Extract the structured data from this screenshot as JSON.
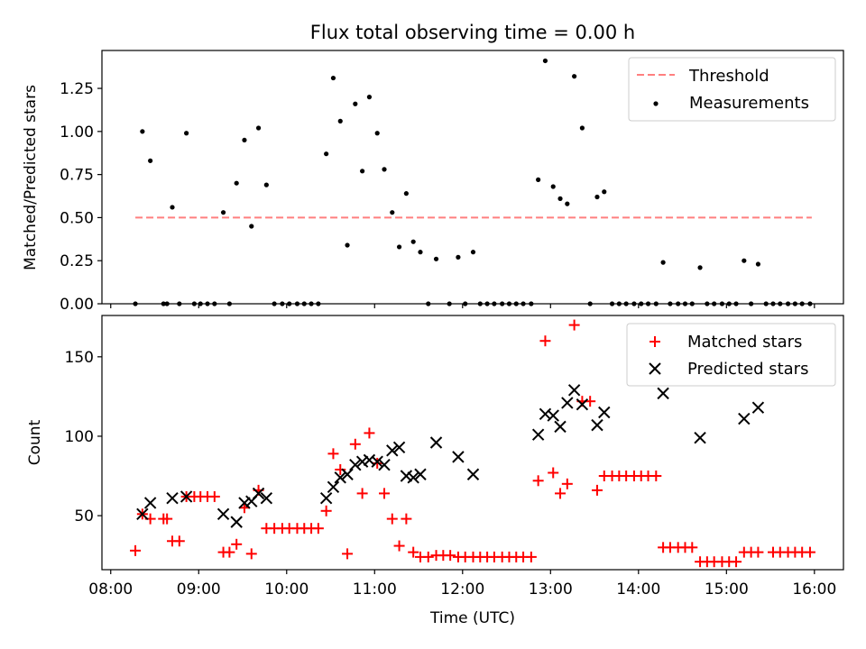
{
  "chart_data": [
    {
      "type": "scatter",
      "title": "Flux total observing time = 0.00 h",
      "xlabel": "",
      "ylabel": "Matched/Predicted stars",
      "xlim": [
        7.9,
        16.33
      ],
      "ylim": [
        0,
        1.47
      ],
      "xticks": [
        8,
        9,
        10,
        11,
        12,
        13,
        14,
        15,
        16
      ],
      "xtick_labels": [],
      "yticks": [
        0,
        0.25,
        0.5,
        0.75,
        1.0,
        1.25
      ],
      "ytick_labels": [
        "0.00",
        "0.25",
        "0.50",
        "0.75",
        "1.00",
        "1.25"
      ],
      "legend_position": "upper right",
      "series": [
        {
          "name": "Threshold",
          "style": "dashed-line",
          "color": "#ff7f7f",
          "points": [
            [
              8.28,
              0.5
            ],
            [
              15.97,
              0.5
            ]
          ]
        },
        {
          "name": "Measurements",
          "style": "dot",
          "color": "#000000",
          "points": [
            [
              8.28,
              0.0
            ],
            [
              8.36,
              1.0
            ],
            [
              8.45,
              0.83
            ],
            [
              8.6,
              0.0
            ],
            [
              8.64,
              0.0
            ],
            [
              8.7,
              0.56
            ],
            [
              8.78,
              0.0
            ],
            [
              8.86,
              0.99
            ],
            [
              8.95,
              0.0
            ],
            [
              9.02,
              0.0
            ],
            [
              9.1,
              0.0
            ],
            [
              9.18,
              0.0
            ],
            [
              9.28,
              0.53
            ],
            [
              9.35,
              0.0
            ],
            [
              9.43,
              0.7
            ],
            [
              9.52,
              0.95
            ],
            [
              9.6,
              0.45
            ],
            [
              9.68,
              1.02
            ],
            [
              9.77,
              0.69
            ],
            [
              9.86,
              0.0
            ],
            [
              9.95,
              0.0
            ],
            [
              10.03,
              0.0
            ],
            [
              10.12,
              0.0
            ],
            [
              10.2,
              0.0
            ],
            [
              10.28,
              0.0
            ],
            [
              10.36,
              0.0
            ],
            [
              10.45,
              0.87
            ],
            [
              10.53,
              1.31
            ],
            [
              10.61,
              1.06
            ],
            [
              10.69,
              0.34
            ],
            [
              10.78,
              1.16
            ],
            [
              10.86,
              0.77
            ],
            [
              10.94,
              1.2
            ],
            [
              11.03,
              0.99
            ],
            [
              11.11,
              0.78
            ],
            [
              11.2,
              0.53
            ],
            [
              11.28,
              0.33
            ],
            [
              11.36,
              0.64
            ],
            [
              11.44,
              0.36
            ],
            [
              11.52,
              0.3
            ],
            [
              11.61,
              0.0
            ],
            [
              11.7,
              0.26
            ],
            [
              11.85,
              0.0
            ],
            [
              11.95,
              0.27
            ],
            [
              12.03,
              0.0
            ],
            [
              12.12,
              0.3
            ],
            [
              12.2,
              0.0
            ],
            [
              12.28,
              0.0
            ],
            [
              12.36,
              0.0
            ],
            [
              12.45,
              0.0
            ],
            [
              12.53,
              0.0
            ],
            [
              12.61,
              0.0
            ],
            [
              12.69,
              0.0
            ],
            [
              12.78,
              0.0
            ],
            [
              12.86,
              0.72
            ],
            [
              12.94,
              1.41
            ],
            [
              13.03,
              0.68
            ],
            [
              13.11,
              0.61
            ],
            [
              13.19,
              0.58
            ],
            [
              13.27,
              1.32
            ],
            [
              13.36,
              1.02
            ],
            [
              13.45,
              0.0
            ],
            [
              13.53,
              0.62
            ],
            [
              13.61,
              0.65
            ],
            [
              13.7,
              0.0
            ],
            [
              13.78,
              0.0
            ],
            [
              13.86,
              0.0
            ],
            [
              13.95,
              0.0
            ],
            [
              14.03,
              0.0
            ],
            [
              14.11,
              0.0
            ],
            [
              14.2,
              0.0
            ],
            [
              14.28,
              0.24
            ],
            [
              14.36,
              0.0
            ],
            [
              14.45,
              0.0
            ],
            [
              14.53,
              0.0
            ],
            [
              14.61,
              0.0
            ],
            [
              14.7,
              0.21
            ],
            [
              14.78,
              0.0
            ],
            [
              14.86,
              0.0
            ],
            [
              14.95,
              0.0
            ],
            [
              15.03,
              0.0
            ],
            [
              15.11,
              0.0
            ],
            [
              15.2,
              0.25
            ],
            [
              15.28,
              0.0
            ],
            [
              15.36,
              0.23
            ],
            [
              15.45,
              0.0
            ],
            [
              15.53,
              0.0
            ],
            [
              15.61,
              0.0
            ],
            [
              15.7,
              0.0
            ],
            [
              15.78,
              0.0
            ],
            [
              15.86,
              0.0
            ],
            [
              15.95,
              0.0
            ]
          ]
        }
      ]
    },
    {
      "type": "scatter",
      "title": "",
      "xlabel": "Time (UTC)",
      "ylabel": "Count",
      "xlim": [
        7.9,
        16.33
      ],
      "ylim": [
        16,
        176
      ],
      "xticks": [
        8,
        9,
        10,
        11,
        12,
        13,
        14,
        15,
        16
      ],
      "xtick_labels": [
        "08:00",
        "09:00",
        "10:00",
        "11:00",
        "12:00",
        "13:00",
        "14:00",
        "15:00",
        "16:00"
      ],
      "yticks": [
        50,
        100,
        150
      ],
      "ytick_labels": [
        "50",
        "100",
        "150"
      ],
      "legend_position": "upper right",
      "series": [
        {
          "name": "Matched stars",
          "style": "plus",
          "color": "#ff0000",
          "points": [
            [
              8.28,
              28
            ],
            [
              8.36,
              51
            ],
            [
              8.45,
              48
            ],
            [
              8.6,
              48
            ],
            [
              8.64,
              48
            ],
            [
              8.7,
              34
            ],
            [
              8.78,
              34
            ],
            [
              8.86,
              62
            ],
            [
              8.95,
              62
            ],
            [
              9.02,
              62
            ],
            [
              9.1,
              62
            ],
            [
              9.18,
              62
            ],
            [
              9.28,
              27
            ],
            [
              9.35,
              27
            ],
            [
              9.43,
              32
            ],
            [
              9.52,
              55
            ],
            [
              9.6,
              26
            ],
            [
              9.68,
              66
            ],
            [
              9.77,
              42
            ],
            [
              9.86,
              42
            ],
            [
              9.95,
              42
            ],
            [
              10.03,
              42
            ],
            [
              10.12,
              42
            ],
            [
              10.2,
              42
            ],
            [
              10.28,
              42
            ],
            [
              10.36,
              42
            ],
            [
              10.45,
              53
            ],
            [
              10.53,
              89
            ],
            [
              10.61,
              79
            ],
            [
              10.69,
              26
            ],
            [
              10.78,
              95
            ],
            [
              10.86,
              64
            ],
            [
              10.94,
              102
            ],
            [
              11.03,
              83
            ],
            [
              11.11,
              64
            ],
            [
              11.2,
              48
            ],
            [
              11.28,
              31
            ],
            [
              11.36,
              48
            ],
            [
              11.44,
              27
            ],
            [
              11.52,
              24
            ],
            [
              11.61,
              24
            ],
            [
              11.7,
              25
            ],
            [
              11.78,
              25
            ],
            [
              11.86,
              25
            ],
            [
              11.95,
              24
            ],
            [
              12.03,
              24
            ],
            [
              12.12,
              24
            ],
            [
              12.2,
              24
            ],
            [
              12.28,
              24
            ],
            [
              12.36,
              24
            ],
            [
              12.45,
              24
            ],
            [
              12.53,
              24
            ],
            [
              12.61,
              24
            ],
            [
              12.69,
              24
            ],
            [
              12.78,
              24
            ],
            [
              12.86,
              72
            ],
            [
              12.94,
              160
            ],
            [
              13.03,
              77
            ],
            [
              13.11,
              64
            ],
            [
              13.19,
              70
            ],
            [
              13.27,
              170
            ],
            [
              13.36,
              122
            ],
            [
              13.45,
              122
            ],
            [
              13.53,
              66
            ],
            [
              13.61,
              75
            ],
            [
              13.7,
              75
            ],
            [
              13.78,
              75
            ],
            [
              13.86,
              75
            ],
            [
              13.95,
              75
            ],
            [
              14.03,
              75
            ],
            [
              14.11,
              75
            ],
            [
              14.2,
              75
            ],
            [
              14.28,
              30
            ],
            [
              14.36,
              30
            ],
            [
              14.45,
              30
            ],
            [
              14.53,
              30
            ],
            [
              14.61,
              30
            ],
            [
              14.7,
              21
            ],
            [
              14.78,
              21
            ],
            [
              14.86,
              21
            ],
            [
              14.95,
              21
            ],
            [
              15.03,
              21
            ],
            [
              15.11,
              21
            ],
            [
              15.2,
              27
            ],
            [
              15.28,
              27
            ],
            [
              15.36,
              27
            ],
            [
              15.53,
              27
            ],
            [
              15.61,
              27
            ],
            [
              15.7,
              27
            ],
            [
              15.78,
              27
            ],
            [
              15.86,
              27
            ],
            [
              15.95,
              27
            ]
          ]
        },
        {
          "name": "Predicted stars",
          "style": "x",
          "color": "#000000",
          "points": [
            [
              8.36,
              51
            ],
            [
              8.45,
              58
            ],
            [
              8.7,
              61
            ],
            [
              8.86,
              62
            ],
            [
              9.28,
              51
            ],
            [
              9.43,
              46
            ],
            [
              9.52,
              58
            ],
            [
              9.6,
              59
            ],
            [
              9.68,
              64
            ],
            [
              9.77,
              61
            ],
            [
              10.45,
              61
            ],
            [
              10.53,
              68
            ],
            [
              10.61,
              74
            ],
            [
              10.69,
              76
            ],
            [
              10.78,
              82
            ],
            [
              10.86,
              84
            ],
            [
              10.94,
              85
            ],
            [
              11.03,
              84
            ],
            [
              11.11,
              82
            ],
            [
              11.2,
              91
            ],
            [
              11.28,
              93
            ],
            [
              11.36,
              75
            ],
            [
              11.44,
              74
            ],
            [
              11.52,
              76
            ],
            [
              11.7,
              96
            ],
            [
              11.95,
              87
            ],
            [
              12.12,
              76
            ],
            [
              12.86,
              101
            ],
            [
              12.94,
              114
            ],
            [
              13.03,
              113
            ],
            [
              13.11,
              106
            ],
            [
              13.19,
              121
            ],
            [
              13.27,
              129
            ],
            [
              13.36,
              120
            ],
            [
              13.53,
              107
            ],
            [
              13.61,
              115
            ],
            [
              14.28,
              127
            ],
            [
              14.7,
              99
            ],
            [
              15.2,
              111
            ],
            [
              15.36,
              118
            ]
          ]
        }
      ]
    }
  ]
}
